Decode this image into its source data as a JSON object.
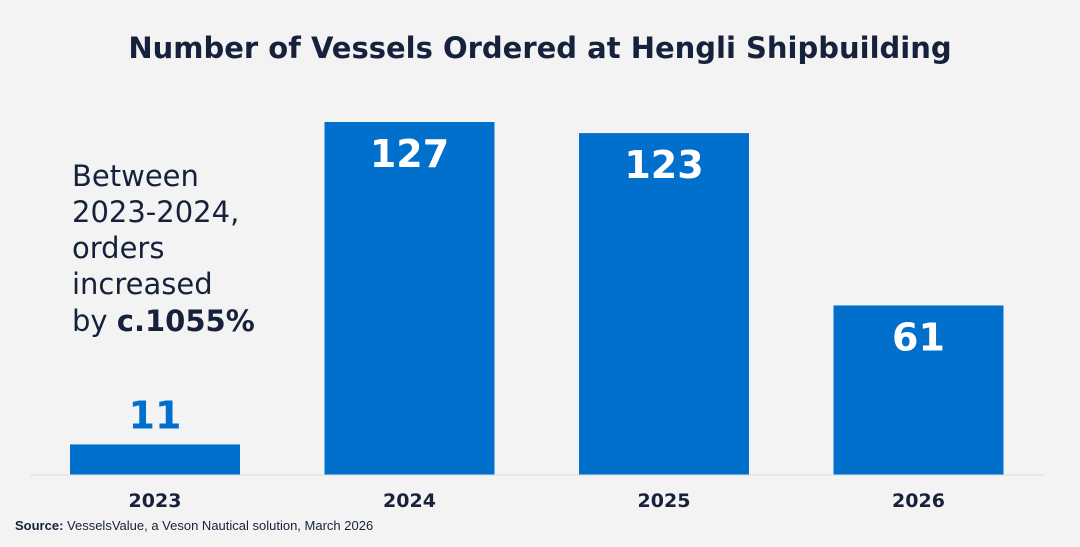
{
  "chart_data": {
    "type": "bar",
    "title": "Number of Vessels Ordered at Hengli Shipbuilding",
    "categories": [
      "2023",
      "2024",
      "2025",
      "2026"
    ],
    "values": [
      11,
      127,
      123,
      61
    ],
    "value_labels": [
      "11",
      "127",
      "123",
      "61"
    ],
    "bar_color": "#0070cc",
    "label_color_inside": "#ffffff",
    "label_color_outside": "#0070cc",
    "ylim": [
      0,
      127
    ],
    "grid": false,
    "xlabel": "",
    "ylabel": "",
    "annotation": {
      "lines": [
        "Between",
        "2023-2024,",
        "orders",
        "increased"
      ],
      "last_line_prefix": "by ",
      "last_line_bold": "c.1055%"
    },
    "source": {
      "label": "Source:",
      "text": " VesselsValue, a Veson Nautical solution, March 2026"
    }
  }
}
